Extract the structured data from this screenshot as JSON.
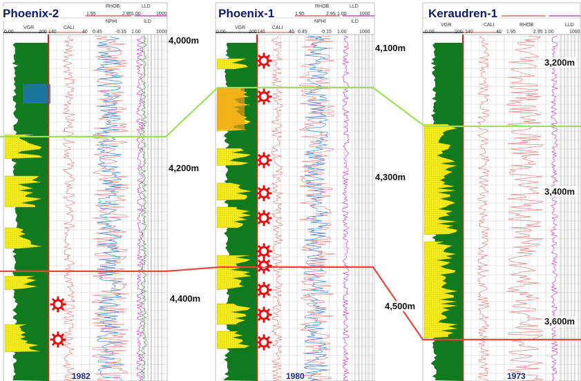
{
  "colors": {
    "sand": "#f2ea1a",
    "shale": "#0f7a1e",
    "gr_border": "#d62418",
    "upper_marker": "#9be05a",
    "lower_marker": "#e8453a",
    "title": "#0b1a6e",
    "year": "#1c2c8c",
    "log_red": "#e8605a",
    "log_blue": "#4a8ee6",
    "log_magenta": "#d23ed2",
    "log_green": "#3a8a3a",
    "dst_star": "#e01010"
  },
  "wells": [
    {
      "name": "Phoenix-2",
      "year": "1982",
      "headers": {
        "gr": "VGR",
        "gr_scale": [
          "0.00",
          "200"
        ],
        "cal": "CALI",
        "cal_scale": [
          "140",
          "40"
        ],
        "rhob": "RHOB",
        "rhob_scale": [
          "1.95",
          "2.95"
        ],
        "nphi": "NPHI",
        "nphi_scale": [
          "0.45",
          "-0.15"
        ],
        "lld": "LLD",
        "lld_scale": [
          "1.00",
          "1000"
        ],
        "ild": "ILD"
      },
      "depths": [
        "4,000m",
        "4,200m",
        "4,400m"
      ],
      "dst_symbols": 2,
      "dst_icon": "red-gear-star-icon"
    },
    {
      "name": "Phoenix-1",
      "year": "1980",
      "headers": {
        "gr": "VGR",
        "gr_scale": [
          "0.00",
          "200"
        ],
        "cal": "CALI",
        "cal_scale": [
          "140",
          "40"
        ],
        "rhob": "RHOB",
        "rhob_scale": [
          "1.95",
          "2.95"
        ],
        "nphi": "NPHI",
        "nphi_scale": [
          "0.45",
          "-0.15"
        ],
        "lld": "LLD",
        "lld_scale": [
          "1.00",
          "1000"
        ],
        "ild": "ILD"
      },
      "depths": [
        "4,100m",
        "4,300m",
        "4,500m"
      ],
      "dst_symbols": 10,
      "dst_icon": "red-gear-star-icon"
    },
    {
      "name": "Keraudren-1",
      "year": "1973",
      "headers": {
        "gr": "VGR",
        "gr_scale": [
          "0.00",
          "200"
        ],
        "cal": "CALI",
        "cal_scale": [
          "140",
          "40"
        ],
        "rhob": "RHOB",
        "rhob_scale": [
          "1.95",
          "2.95"
        ],
        "lld": "LLD",
        "lld_scale": [
          "1.00",
          "1000"
        ]
      },
      "depths": [
        "3,200m",
        "3,400m",
        "3,600m"
      ],
      "dst_symbols": 0,
      "dst_icon": "red-gear-star-icon"
    }
  ],
  "correlation_lines": [
    {
      "name": "upper-marker",
      "color": "#9be05a"
    },
    {
      "name": "lower-marker",
      "color": "#e8453a"
    }
  ]
}
